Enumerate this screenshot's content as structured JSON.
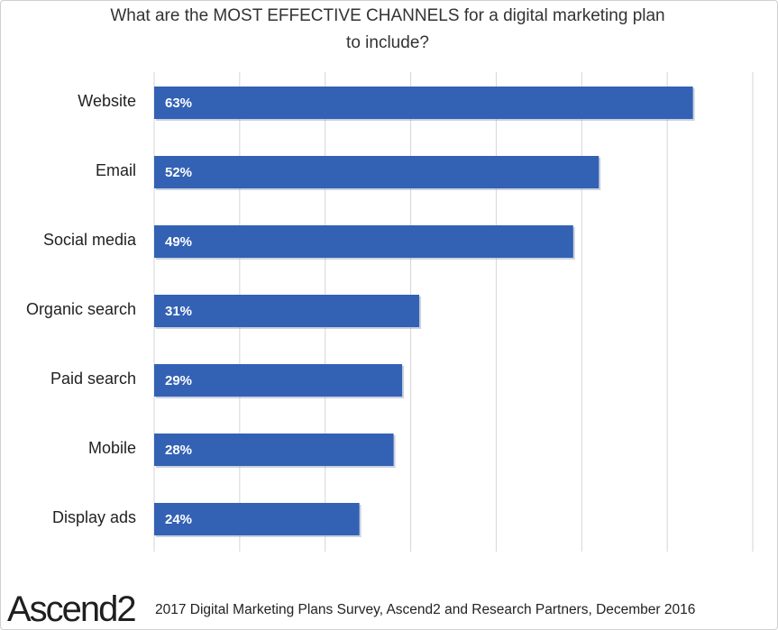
{
  "chart_data": {
    "type": "bar",
    "orientation": "horizontal",
    "title_lines": [
      "What are the MOST EFFECTIVE CHANNELS for a digital marketing plan",
      "to include?"
    ],
    "categories": [
      "Website",
      "Email",
      "Social media",
      "Organic search",
      "Paid search",
      "Mobile",
      "Display ads"
    ],
    "values": [
      63,
      52,
      49,
      31,
      29,
      28,
      24
    ],
    "data_labels": [
      "63%",
      "52%",
      "49%",
      "31%",
      "29%",
      "28%",
      "24%"
    ],
    "xlim": [
      0,
      70
    ],
    "grid": "vertical",
    "legend": "none",
    "bar_color": "#3361b4",
    "grid_color": "#d6d6d6"
  },
  "footer": {
    "logo_text": "Ascend2",
    "source": "2017 Digital Marketing Plans Survey, Ascend2 and Research Partners, December 2016"
  }
}
